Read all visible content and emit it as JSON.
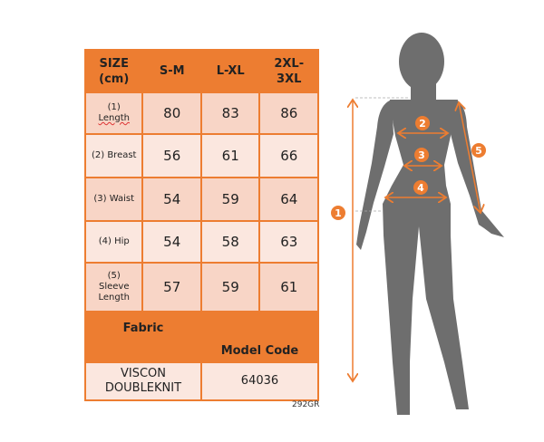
{
  "table": {
    "header": [
      "SIZE\n(cm)",
      "S-M",
      "L-XL",
      "2XL-\n3XL"
    ],
    "header_lines": [
      [
        "SIZE",
        "(cm)"
      ],
      [
        "S-M"
      ],
      [
        "L-XL"
      ],
      [
        "2XL-",
        "3XL"
      ]
    ],
    "rows": [
      {
        "label": [
          "(1)",
          "Length"
        ],
        "values": [
          "80",
          "83",
          "86"
        ]
      },
      {
        "label": [
          "(2) Breast"
        ],
        "values": [
          "56",
          "61",
          "66"
        ]
      },
      {
        "label": [
          "(3) Waist"
        ],
        "values": [
          "54",
          "59",
          "64"
        ]
      },
      {
        "label": [
          "(4) Hip"
        ],
        "values": [
          "54",
          "58",
          "63"
        ]
      },
      {
        "label": [
          "(5)",
          "Sleeve",
          "Length"
        ],
        "values": [
          "57",
          "59",
          "61"
        ]
      }
    ],
    "fabric_label": "Fabric",
    "model_code_label": "Model Code",
    "fabric_value": [
      "VISCON",
      "DOUBLEKNIT"
    ],
    "model_code_value": "64036"
  },
  "product_code": "292GR",
  "markers": [
    "1",
    "2",
    "3",
    "4",
    "5"
  ],
  "colors": {
    "accent": "#ed7d31",
    "silhouette": "#6e6e6e",
    "row_dark": "#f8d5c6",
    "row_light": "#fbe7df"
  }
}
